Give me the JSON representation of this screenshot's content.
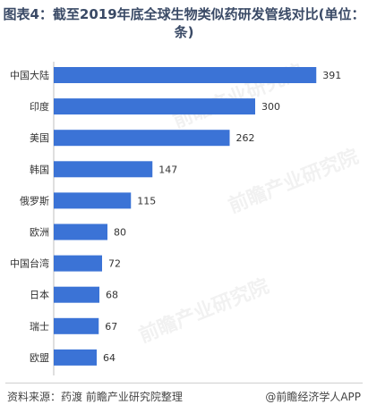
{
  "title": "图表4：截至2019年底全球生物类似药研发管线对比(单位：条)",
  "source": "资料来源：药渡 前瞻产业研究院整理",
  "brand": "@前瞻经济学人APP",
  "watermark": "前瞻产业研究院",
  "colors": {
    "bar": "#3b73d6",
    "axis": "#bfbfbf",
    "text": "#333333"
  },
  "chart_data": {
    "type": "bar",
    "orientation": "horizontal",
    "categories": [
      "中国大陆",
      "印度",
      "美国",
      "韩国",
      "俄罗斯",
      "欧洲",
      "中国台湾",
      "日本",
      "瑞士",
      "欧盟"
    ],
    "values": [
      391,
      300,
      262,
      147,
      115,
      80,
      72,
      68,
      67,
      64
    ],
    "xlim": [
      0,
      400
    ],
    "grid": false,
    "legend": "none"
  }
}
